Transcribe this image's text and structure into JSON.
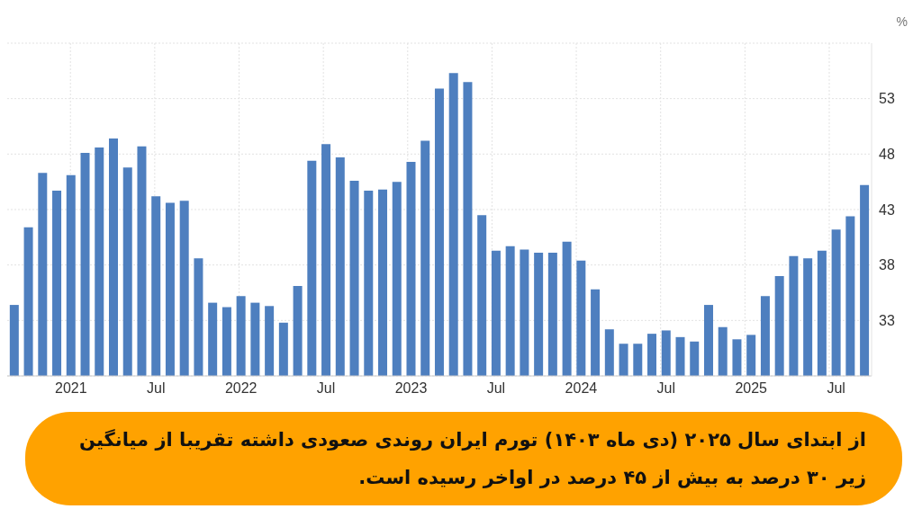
{
  "chart_data": {
    "type": "bar",
    "ylabel": "%",
    "categories": [
      null,
      null,
      null,
      null,
      "2021",
      null,
      null,
      null,
      null,
      null,
      "Jul",
      null,
      null,
      null,
      null,
      null,
      "2022",
      null,
      null,
      null,
      null,
      null,
      "Jul",
      null,
      null,
      null,
      null,
      null,
      "2023",
      null,
      null,
      null,
      null,
      null,
      "Jul",
      null,
      null,
      null,
      null,
      null,
      "2024",
      null,
      null,
      null,
      null,
      null,
      "Jul",
      null,
      null,
      null,
      null,
      null,
      "2025",
      null,
      null,
      null,
      null,
      null,
      "Jul",
      null,
      null
    ],
    "series": [
      {
        "color": "#4e7fbf",
        "values": [
          34.4,
          41.4,
          46.3,
          44.7,
          46.1,
          48.1,
          48.6,
          49.4,
          46.8,
          48.7,
          44.2,
          43.6,
          43.8,
          38.6,
          34.6,
          34.2,
          35.2,
          34.6,
          34.3,
          32.8,
          36.1,
          47.4,
          48.9,
          47.7,
          45.6,
          44.7,
          44.8,
          45.5,
          47.3,
          49.2,
          53.9,
          55.3,
          54.5,
          42.5,
          39.3,
          39.7,
          39.4,
          39.1,
          39.1,
          40.1,
          38.4,
          35.8,
          32.2,
          30.9,
          30.9,
          31.8,
          32.1,
          31.5,
          31.1,
          34.4,
          32.4,
          31.3,
          31.7,
          35.2,
          37.0,
          38.8,
          38.6,
          39.3,
          41.2,
          42.4,
          45.2
        ]
      }
    ],
    "ylim": [
      28,
      58
    ],
    "yticks": [
      33,
      38,
      43,
      48,
      53,
      {
        "value": 58,
        "label": null
      }
    ],
    "grid": true,
    "legend": false,
    "annotations": [
      "از ابتدای سال ۲۰۲۵ (دی ماه ۱۴۰۳) تورم ایران روندی صعودی داشته تقریبا از میانگین زیر ۳۰ درصد به بیش از ۴۵ درصد در اواخر رسیده است."
    ]
  }
}
